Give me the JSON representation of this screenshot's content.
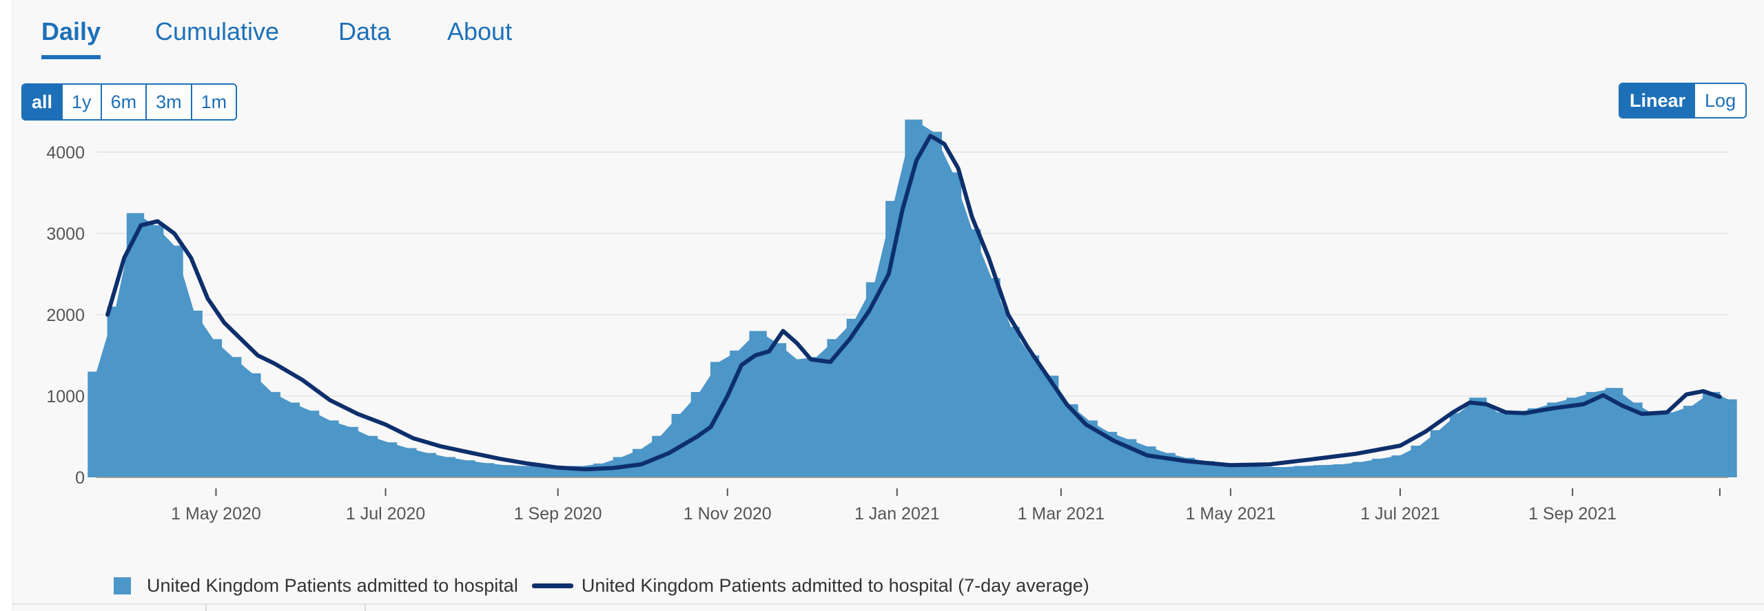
{
  "tabs": [
    {
      "label": "Daily",
      "active": true
    },
    {
      "label": "Cumulative",
      "active": false
    },
    {
      "label": "Data",
      "active": false
    },
    {
      "label": "About",
      "active": false
    }
  ],
  "time_range": {
    "options": [
      "all",
      "1y",
      "6m",
      "3m",
      "1m"
    ],
    "selected": "all"
  },
  "scale": {
    "options": [
      "Linear",
      "Log"
    ],
    "selected": "Linear"
  },
  "colors": {
    "bars": "#4c96c8",
    "average_line": "#0d2f6b",
    "accent": "#1d70b8"
  },
  "legend": {
    "bars": "United Kingdom Patients admitted to hospital",
    "line": "United Kingdom Patients admitted to hospital (7-day average)"
  },
  "chart_data": {
    "type": "bar",
    "title": "",
    "xlabel": "",
    "ylabel": "",
    "ylim": [
      0,
      4600
    ],
    "yticks": [
      0,
      1000,
      2000,
      3000,
      4000
    ],
    "xlim": [
      "2020-03-19",
      "2021-10-27"
    ],
    "xticks": [
      {
        "date": "2020-05-01",
        "label": "1 May 2020"
      },
      {
        "date": "2020-07-01",
        "label": "1 Jul 2020"
      },
      {
        "date": "2020-09-01",
        "label": "1 Sep 2020"
      },
      {
        "date": "2020-11-01",
        "label": "1 Nov 2020"
      },
      {
        "date": "2021-01-01",
        "label": "1 Jan 2021"
      },
      {
        "date": "2021-03-01",
        "label": "1 Mar 2021"
      },
      {
        "date": "2021-05-01",
        "label": "1 May 2021"
      },
      {
        "date": "2021-07-01",
        "label": "1 Jul 2021"
      },
      {
        "date": "2021-09-01",
        "label": "1 Sep 2021"
      },
      {
        "date": "2021-10-24",
        "label": ""
      }
    ],
    "grid": true,
    "legend_position": "bottom-left",
    "series": [
      {
        "name": "United Kingdom Patients admitted to hospital",
        "kind": "bar",
        "x": [
          "2020-03-19",
          "2020-03-26",
          "2020-04-02",
          "2020-04-09",
          "2020-04-16",
          "2020-04-23",
          "2020-04-30",
          "2020-05-07",
          "2020-05-14",
          "2020-05-21",
          "2020-05-28",
          "2020-06-04",
          "2020-06-11",
          "2020-06-18",
          "2020-06-25",
          "2020-07-02",
          "2020-07-09",
          "2020-07-16",
          "2020-07-23",
          "2020-07-30",
          "2020-08-06",
          "2020-08-13",
          "2020-08-20",
          "2020-08-27",
          "2020-09-03",
          "2020-09-10",
          "2020-09-17",
          "2020-09-24",
          "2020-10-01",
          "2020-10-08",
          "2020-10-15",
          "2020-10-22",
          "2020-10-29",
          "2020-11-05",
          "2020-11-12",
          "2020-11-19",
          "2020-11-26",
          "2020-12-03",
          "2020-12-10",
          "2020-12-17",
          "2020-12-24",
          "2020-12-31",
          "2021-01-07",
          "2021-01-14",
          "2021-01-21",
          "2021-01-28",
          "2021-02-04",
          "2021-02-11",
          "2021-02-18",
          "2021-02-25",
          "2021-03-04",
          "2021-03-11",
          "2021-03-18",
          "2021-03-25",
          "2021-04-01",
          "2021-04-08",
          "2021-04-15",
          "2021-04-22",
          "2021-04-29",
          "2021-05-06",
          "2021-05-13",
          "2021-05-20",
          "2021-05-27",
          "2021-06-03",
          "2021-06-10",
          "2021-06-17",
          "2021-06-24",
          "2021-07-01",
          "2021-07-08",
          "2021-07-15",
          "2021-07-22",
          "2021-07-29",
          "2021-08-05",
          "2021-08-12",
          "2021-08-19",
          "2021-08-26",
          "2021-09-02",
          "2021-09-09",
          "2021-09-16",
          "2021-09-23",
          "2021-09-30",
          "2021-10-07",
          "2021-10-14",
          "2021-10-21",
          "2021-10-27"
        ],
        "values": [
          1300,
          2100,
          3250,
          3100,
          2850,
          2050,
          1700,
          1480,
          1280,
          1050,
          920,
          820,
          700,
          620,
          510,
          430,
          360,
          300,
          250,
          210,
          175,
          150,
          140,
          130,
          140,
          140,
          170,
          250,
          350,
          510,
          780,
          1050,
          1420,
          1560,
          1800,
          1650,
          1450,
          1480,
          1700,
          1950,
          2400,
          3400,
          4400,
          4250,
          3750,
          3050,
          2450,
          1850,
          1500,
          1250,
          900,
          700,
          560,
          470,
          380,
          300,
          240,
          200,
          170,
          140,
          130,
          125,
          140,
          150,
          160,
          190,
          230,
          270,
          390,
          580,
          790,
          980,
          800,
          800,
          850,
          920,
          980,
          1050,
          1100,
          920,
          780,
          800,
          880,
          1050,
          960
        ]
      },
      {
        "name": "United Kingdom Patients admitted to hospital (7-day average)",
        "kind": "line",
        "x": [
          "2020-03-23",
          "2020-03-29",
          "2020-04-04",
          "2020-04-10",
          "2020-04-16",
          "2020-04-22",
          "2020-04-28",
          "2020-05-04",
          "2020-05-10",
          "2020-05-16",
          "2020-05-22",
          "2020-06-01",
          "2020-06-11",
          "2020-06-21",
          "2020-07-01",
          "2020-07-11",
          "2020-07-21",
          "2020-08-01",
          "2020-08-11",
          "2020-08-21",
          "2020-09-01",
          "2020-09-11",
          "2020-09-21",
          "2020-10-01",
          "2020-10-11",
          "2020-10-21",
          "2020-10-26",
          "2020-11-01",
          "2020-11-06",
          "2020-11-11",
          "2020-11-16",
          "2020-11-21",
          "2020-11-26",
          "2020-12-01",
          "2020-12-08",
          "2020-12-15",
          "2020-12-22",
          "2020-12-29",
          "2021-01-03",
          "2021-01-08",
          "2021-01-13",
          "2021-01-18",
          "2021-01-23",
          "2021-01-28",
          "2021-02-03",
          "2021-02-10",
          "2021-02-17",
          "2021-02-24",
          "2021-03-03",
          "2021-03-10",
          "2021-03-20",
          "2021-04-01",
          "2021-04-15",
          "2021-05-01",
          "2021-05-15",
          "2021-06-01",
          "2021-06-15",
          "2021-07-01",
          "2021-07-10",
          "2021-07-20",
          "2021-07-26",
          "2021-08-01",
          "2021-08-08",
          "2021-08-15",
          "2021-08-25",
          "2021-09-05",
          "2021-09-12",
          "2021-09-19",
          "2021-09-26",
          "2021-10-05",
          "2021-10-12",
          "2021-10-18",
          "2021-10-24"
        ],
        "values": [
          2000,
          2700,
          3100,
          3150,
          3000,
          2700,
          2200,
          1900,
          1700,
          1500,
          1400,
          1200,
          950,
          780,
          650,
          480,
          380,
          300,
          230,
          170,
          120,
          100,
          115,
          160,
          300,
          500,
          620,
          1000,
          1380,
          1500,
          1550,
          1800,
          1650,
          1450,
          1420,
          1700,
          2050,
          2500,
          3300,
          3900,
          4200,
          4100,
          3800,
          3200,
          2700,
          2000,
          1600,
          1250,
          900,
          650,
          450,
          270,
          200,
          150,
          160,
          230,
          290,
          390,
          560,
          800,
          920,
          900,
          800,
          790,
          850,
          900,
          1010,
          880,
          780,
          800,
          1020,
          1060,
          990
        ]
      }
    ]
  }
}
